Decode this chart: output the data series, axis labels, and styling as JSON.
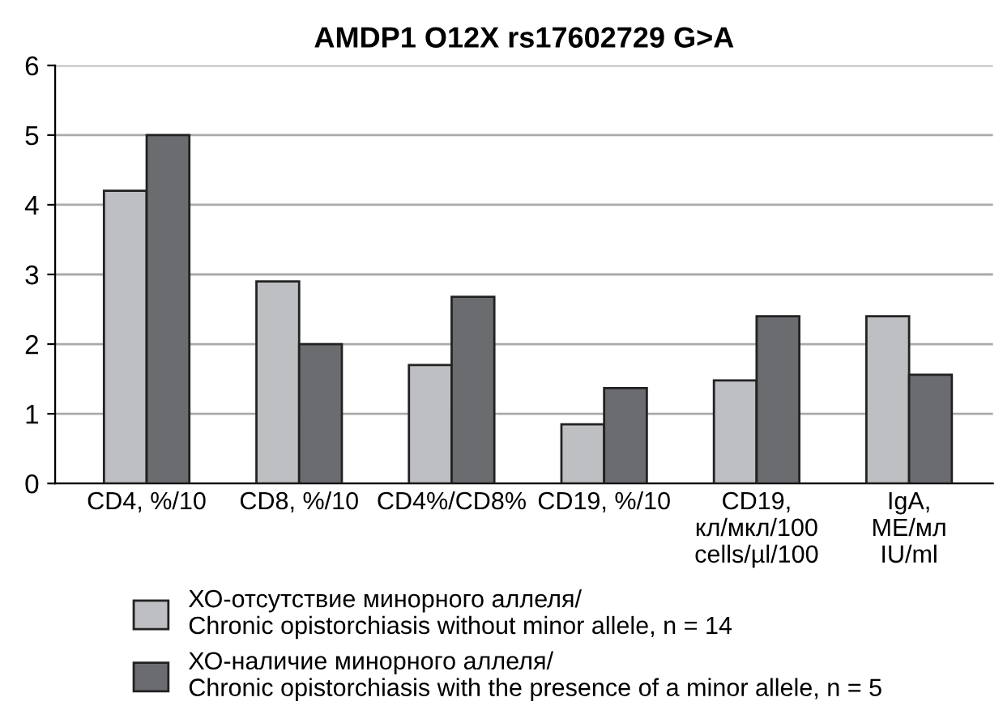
{
  "chart_data": {
    "type": "bar",
    "title": "AMDP1 O12X rs17602729 G>A",
    "categories": [
      "CD4, %/10",
      "CD8, %/10",
      "CD4%/CD8%",
      "CD19, %/10",
      "CD19,\nкл/мкл/100\ncells/µl/100",
      "IgA,\nME/мл\nIU/ml"
    ],
    "series": [
      {
        "name": "ХО-отсутствие минорного аллеля/\nChronic opistorchiasis without minor allele, n = 14",
        "color": "#bebfc2",
        "values": [
          4.2,
          2.9,
          1.7,
          0.85,
          1.48,
          2.4
        ]
      },
      {
        "name": "ХО-наличие минорного аллеля/\nChronic opistorchiasis with the presence of a minor allele, n = 5",
        "color": "#6b6c70",
        "values": [
          5.0,
          2.0,
          2.68,
          1.37,
          2.4,
          1.56
        ]
      }
    ],
    "ylim": [
      0,
      6
    ],
    "yticks": [
      0,
      1,
      2,
      3,
      4,
      5,
      6
    ],
    "grid": "y",
    "legend": "bottom"
  }
}
